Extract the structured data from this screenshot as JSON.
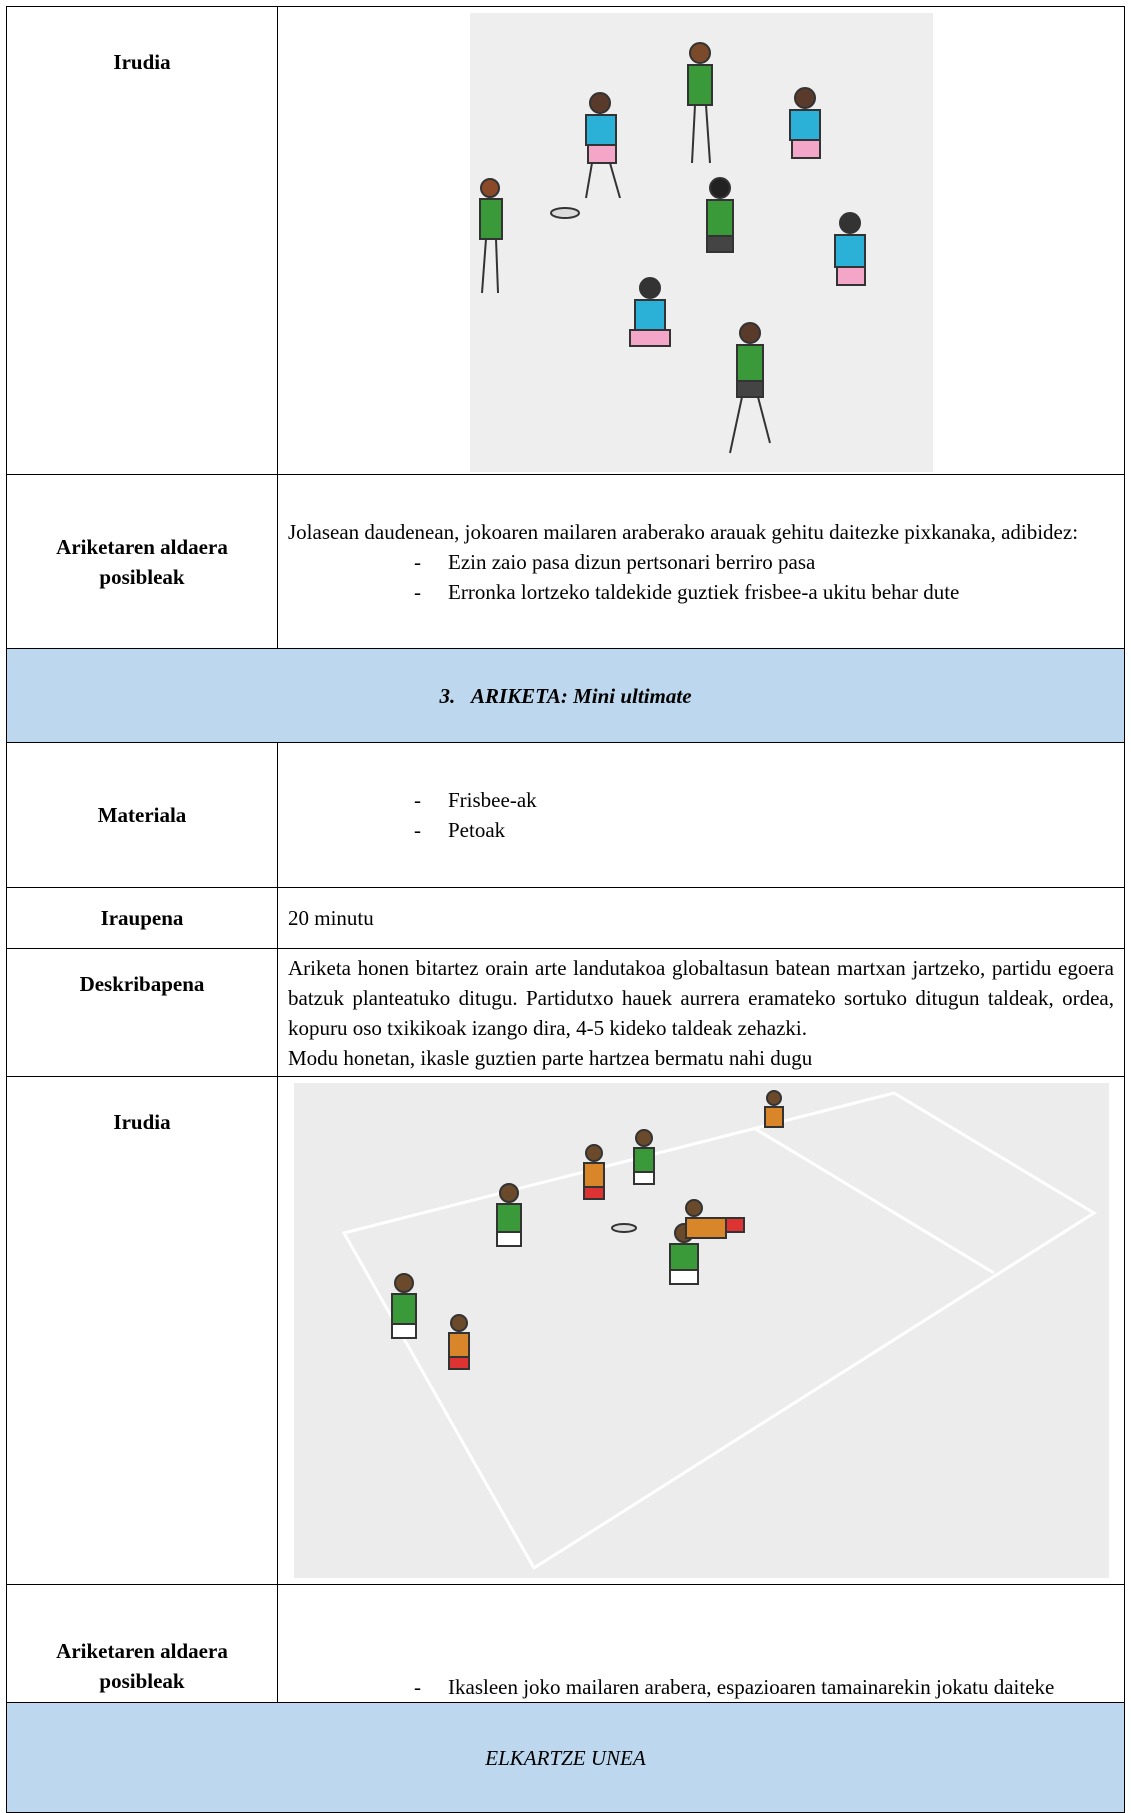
{
  "rows": [
    {
      "label": "Irudia"
    },
    {
      "label": "Ariketaren aldaera posibleak",
      "text": "Jolasean daudenean, jokoaren mailaren araberako arauak gehitu daitezke pixkanaka, adibidez:",
      "items": [
        "Ezin zaio pasa dizun pertsonari berriro pasa",
        "Erronka lortzeko taldekide guztiek frisbee-a ukitu behar dute"
      ]
    },
    {
      "heading_number": "3.",
      "heading_title": "ARIKETA: Mini ultimate"
    },
    {
      "label": "Materiala",
      "items": [
        "Frisbee-ak",
        "Petoak"
      ]
    },
    {
      "label": "Iraupena",
      "text": "20 minutu"
    },
    {
      "label": "Deskribapena",
      "text": "Ariketa honen bitartez orain arte landutakoa globaltasun batean martxan jartzeko, partidu egoera batzuk planteatuko ditugu. Partidutxo hauek aurrera eramateko sortuko ditugun taldeak, ordea, kopuru oso txikikoak izango dira, 4-5 kideko taldeak zehazki.",
      "text2": "Modu honetan, ikasle guztien parte hartzea bermatu nahi dugu"
    },
    {
      "label": "Irudia"
    },
    {
      "label": "Ariketaren aldaera posibleak",
      "items": [
        "Ikasleen joko mailaren arabera, espazioaren tamainarekin jokatu daiteke"
      ]
    },
    {
      "heading_title": "ELKARTZE UNEA"
    }
  ]
}
